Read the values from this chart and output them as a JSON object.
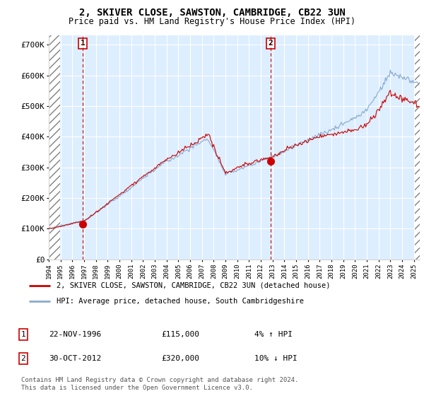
{
  "title": "2, SKIVER CLOSE, SAWSTON, CAMBRIDGE, CB22 3UN",
  "subtitle": "Price paid vs. HM Land Registry's House Price Index (HPI)",
  "ylabel_ticks": [
    "£0",
    "£100K",
    "£200K",
    "£300K",
    "£400K",
    "£500K",
    "£600K",
    "£700K"
  ],
  "ytick_vals": [
    0,
    100000,
    200000,
    300000,
    400000,
    500000,
    600000,
    700000
  ],
  "ylim": [
    0,
    730000
  ],
  "xlim_start": 1994.0,
  "xlim_end": 2025.5,
  "legend_line1": "2, SKIVER CLOSE, SAWSTON, CAMBRIDGE, CB22 3UN (detached house)",
  "legend_line2": "HPI: Average price, detached house, South Cambridgeshire",
  "annotation1_label": "1",
  "annotation1_date": "22-NOV-1996",
  "annotation1_price": "£115,000",
  "annotation1_hpi": "4% ↑ HPI",
  "annotation2_label": "2",
  "annotation2_date": "30-OCT-2012",
  "annotation2_price": "£320,000",
  "annotation2_hpi": "10% ↓ HPI",
  "footer": "Contains HM Land Registry data © Crown copyright and database right 2024.\nThis data is licensed under the Open Government Licence v3.0.",
  "line_color_red": "#cc0000",
  "line_color_blue": "#88aacc",
  "point1_x": 1996.9,
  "point1_y": 115000,
  "point2_x": 2012.83,
  "point2_y": 320000,
  "plot_bg": "#ddeeff",
  "fig_bg": "#ffffff"
}
